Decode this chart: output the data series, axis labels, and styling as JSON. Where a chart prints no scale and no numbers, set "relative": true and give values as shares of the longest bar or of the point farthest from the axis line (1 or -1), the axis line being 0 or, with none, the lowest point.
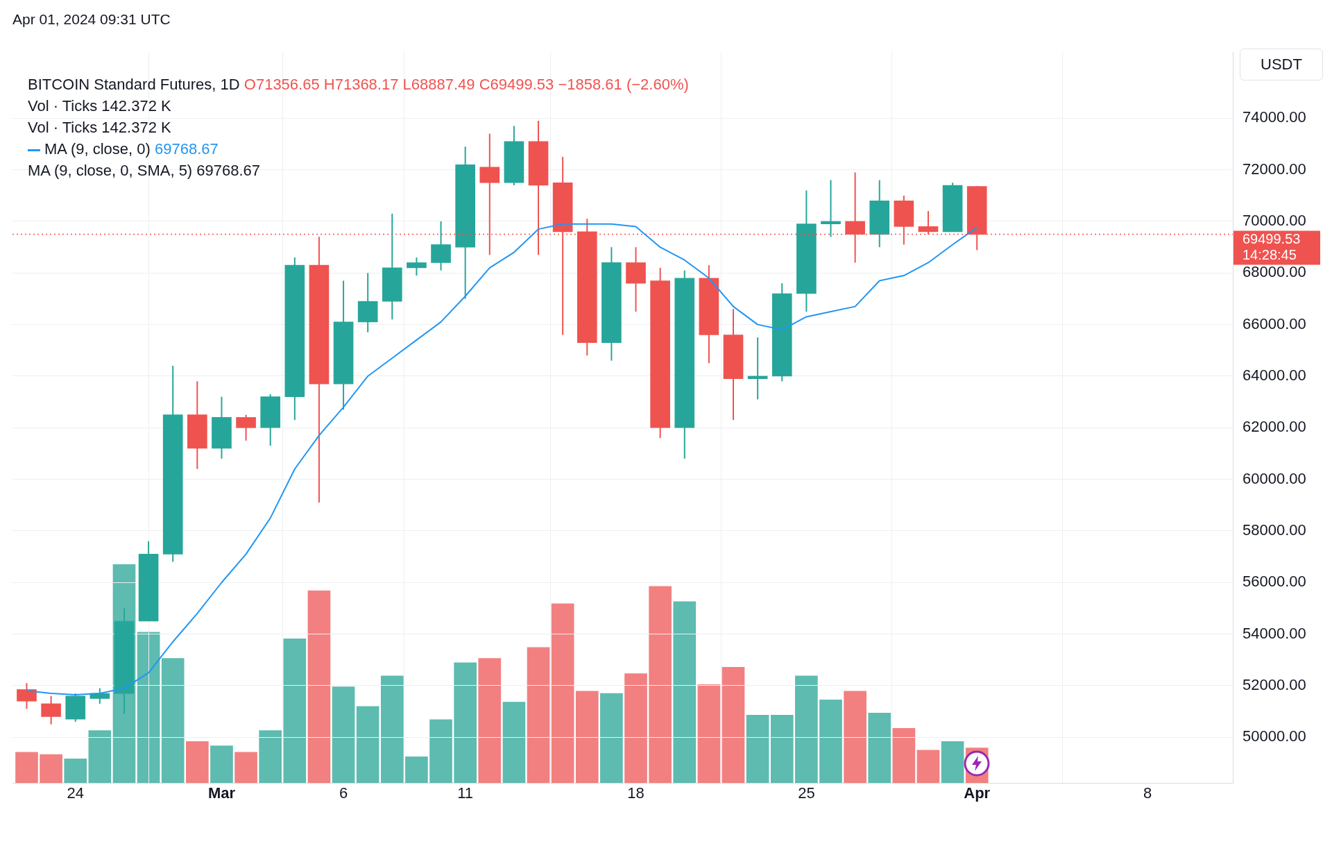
{
  "chart_data": [
    {
      "type": "candlestick",
      "title": "BITCOIN Standard Futures, 1D",
      "subtitle": "O71356.65  H71368.17  L68887.49  C69499.53  −1858.61 (−2.60%)",
      "ylabel": "USDT",
      "annotations": [
        "Apr 01, 2024 09:31 UTC",
        "Vol · Ticks  142.372 K",
        "Vol · Ticks  142.372 K",
        "69768.67",
        "MA (9, close, 0, SMA, 5)  69768.67",
        "14:28:45"
      ],
      "x": [
        "2024-02-22",
        "2024-02-23",
        "2024-02-24",
        "2024-02-25",
        "2024-02-26",
        "2024-02-27",
        "2024-02-28",
        "2024-02-29",
        "2024-03-01",
        "2024-03-02",
        "2024-03-03",
        "2024-03-04",
        "2024-03-05",
        "2024-03-06",
        "2024-03-07",
        "2024-03-08",
        "2024-03-09",
        "2024-03-10",
        "2024-03-11",
        "2024-03-12",
        "2024-03-13",
        "2024-03-14",
        "2024-03-15",
        "2024-03-16",
        "2024-03-17",
        "2024-03-18",
        "2024-03-19",
        "2024-03-20",
        "2024-03-21",
        "2024-03-22",
        "2024-03-23",
        "2024-03-24",
        "2024-03-25",
        "2024-03-26",
        "2024-03-27",
        "2024-03-28",
        "2024-03-29",
        "2024-03-30",
        "2024-03-31",
        "2024-04-01"
      ],
      "ohlc": [
        [
          51850,
          52100,
          51100,
          51400
        ],
        [
          51300,
          51600,
          50500,
          50800
        ],
        [
          50700,
          51700,
          50600,
          51600
        ],
        [
          51500,
          51900,
          51300,
          51700
        ],
        [
          51700,
          55000,
          50900,
          54500
        ],
        [
          54500,
          57600,
          54500,
          57100
        ],
        [
          57100,
          64400,
          56800,
          62500
        ],
        [
          62500,
          63800,
          60400,
          61200
        ],
        [
          61200,
          63200,
          60800,
          62400
        ],
        [
          62400,
          62500,
          61500,
          62000
        ],
        [
          62000,
          63300,
          61300,
          63200
        ],
        [
          63200,
          68600,
          62300,
          68300
        ],
        [
          68300,
          69400,
          59100,
          63700
        ],
        [
          63700,
          67700,
          62700,
          66100
        ],
        [
          66100,
          68000,
          65700,
          66900
        ],
        [
          66900,
          70300,
          66200,
          68200
        ],
        [
          68200,
          68600,
          67900,
          68400
        ],
        [
          68400,
          70000,
          68100,
          69100
        ],
        [
          69000,
          72900,
          67000,
          72200
        ],
        [
          72100,
          73400,
          68700,
          71500
        ],
        [
          71500,
          73700,
          71400,
          73100
        ],
        [
          73100,
          73900,
          68700,
          71400
        ],
        [
          71500,
          72500,
          65600,
          69600
        ],
        [
          69600,
          70100,
          64800,
          65300
        ],
        [
          65300,
          69000,
          64600,
          68400
        ],
        [
          68400,
          69000,
          66500,
          67600
        ],
        [
          67700,
          68200,
          61600,
          62000
        ],
        [
          62000,
          68100,
          60800,
          67800
        ],
        [
          67800,
          68300,
          64500,
          65600
        ],
        [
          65600,
          66600,
          62300,
          63900
        ],
        [
          63900,
          65500,
          63100,
          64000
        ],
        [
          64000,
          67600,
          63800,
          67200
        ],
        [
          67200,
          71200,
          66500,
          69900
        ],
        [
          69900,
          71600,
          69400,
          70000
        ],
        [
          70000,
          71900,
          68400,
          69500
        ],
        [
          69500,
          71600,
          69000,
          70800
        ],
        [
          70800,
          71000,
          69100,
          69800
        ],
        [
          69800,
          70400,
          69500,
          69600
        ],
        [
          69600,
          71500,
          69600,
          71400
        ],
        [
          71356.65,
          71368.17,
          68887.49,
          69499.53
        ]
      ],
      "series": [
        {
          "name": "MA (9, close, 0)",
          "type": "line",
          "color": "#2196f3",
          "values": [
            51800,
            51700,
            51650,
            51700,
            51900,
            52500,
            53700,
            54800,
            56000,
            57100,
            58500,
            60400,
            61700,
            62800,
            64000,
            64700,
            65400,
            66100,
            67100,
            68200,
            68800,
            69700,
            69900,
            69900,
            69900,
            69800,
            69000,
            68500,
            67800,
            66700,
            66000,
            65800,
            66300,
            66500,
            66700,
            67700,
            67900,
            68400,
            69100,
            69768.67
          ]
        }
      ],
      "xlim": [
        "2024-02-21T10:00",
        "2024-04-11T12:00"
      ],
      "xticks": [
        {
          "value": "2024-02-24",
          "label": "24"
        },
        {
          "value": "2024-03-01",
          "label": "Mar"
        },
        {
          "value": "2024-03-06",
          "label": "6"
        },
        {
          "value": "2024-03-11",
          "label": "11"
        },
        {
          "value": "2024-03-18",
          "label": "18"
        },
        {
          "value": "2024-03-25",
          "label": "25"
        },
        {
          "value": "2024-04-01",
          "label": "Apr"
        },
        {
          "value": "2024-04-08",
          "label": "8"
        }
      ],
      "ylim": [
        48230,
        76560
      ],
      "yticks": [
        {
          "value": 50000,
          "label": "50000.00"
        },
        {
          "value": 52000,
          "label": "52000.00"
        },
        {
          "value": 54000,
          "label": "54000.00"
        },
        {
          "value": 56000,
          "label": "56000.00"
        },
        {
          "value": 58000,
          "label": "58000.00"
        },
        {
          "value": 60000,
          "label": "60000.00"
        },
        {
          "value": 62000,
          "label": "62000.00"
        },
        {
          "value": 64000,
          "label": "64000.00"
        },
        {
          "value": 66000,
          "label": "66000.00"
        },
        {
          "value": 68000,
          "label": "68000.00"
        },
        {
          "value": 70000,
          "label": "70000.00"
        },
        {
          "value": 72000,
          "label": "72000.00"
        },
        {
          "value": 74000,
          "label": "74000.00"
        }
      ],
      "ref_lines": [
        {
          "axis": "y",
          "value": 69499.53,
          "label": "69499.53",
          "color": "#ef5350",
          "line_style": "dotted"
        }
      ],
      "grid": true,
      "legend": "top left"
    },
    {
      "type": "bar",
      "relative": true,
      "categories": [
        null,
        null,
        null,
        null,
        null,
        null,
        null,
        null,
        null,
        null,
        null,
        null,
        null,
        null,
        null,
        null,
        null,
        null,
        null,
        null,
        null,
        null,
        null,
        null,
        null,
        null,
        null,
        null,
        null,
        null,
        null,
        null,
        null,
        null,
        null,
        null,
        null,
        null,
        null,
        null
      ],
      "values": [
        0.14,
        0.13,
        0.11,
        0.24,
        1,
        0.69,
        0.57,
        0.19,
        0.17,
        0.14,
        0.24,
        0.66,
        0.88,
        0.44,
        0.35,
        0.49,
        0.12,
        0.29,
        0.55,
        0.57,
        0.37,
        0.62,
        0.82,
        0.42,
        0.41,
        0.5,
        0.9,
        0.83,
        0.45,
        0.53,
        0.31,
        0.31,
        0.49,
        0.38,
        0.42,
        0.32,
        0.25,
        0.15,
        0.19,
        0.16
      ],
      "colors": [
        "#f28080",
        "#f28080",
        "#5dbbb0",
        "#5dbbb0",
        "#5dbbb0",
        "#5dbbb0",
        "#5dbbb0",
        "#f28080",
        "#5dbbb0",
        "#f28080",
        "#5dbbb0",
        "#5dbbb0",
        "#f28080",
        "#5dbbb0",
        "#5dbbb0",
        "#5dbbb0",
        "#5dbbb0",
        "#5dbbb0",
        "#5dbbb0",
        "#f28080",
        "#5dbbb0",
        "#f28080",
        "#f28080",
        "#f28080",
        "#5dbbb0",
        "#f28080",
        "#f28080",
        "#5dbbb0",
        "#f28080",
        "#f28080",
        "#5dbbb0",
        "#5dbbb0",
        "#5dbbb0",
        "#5dbbb0",
        "#f28080",
        "#5dbbb0",
        "#f28080",
        "#f28080",
        "#5dbbb0",
        "#f28080"
      ],
      "grid": false,
      "legend": false
    }
  ]
}
